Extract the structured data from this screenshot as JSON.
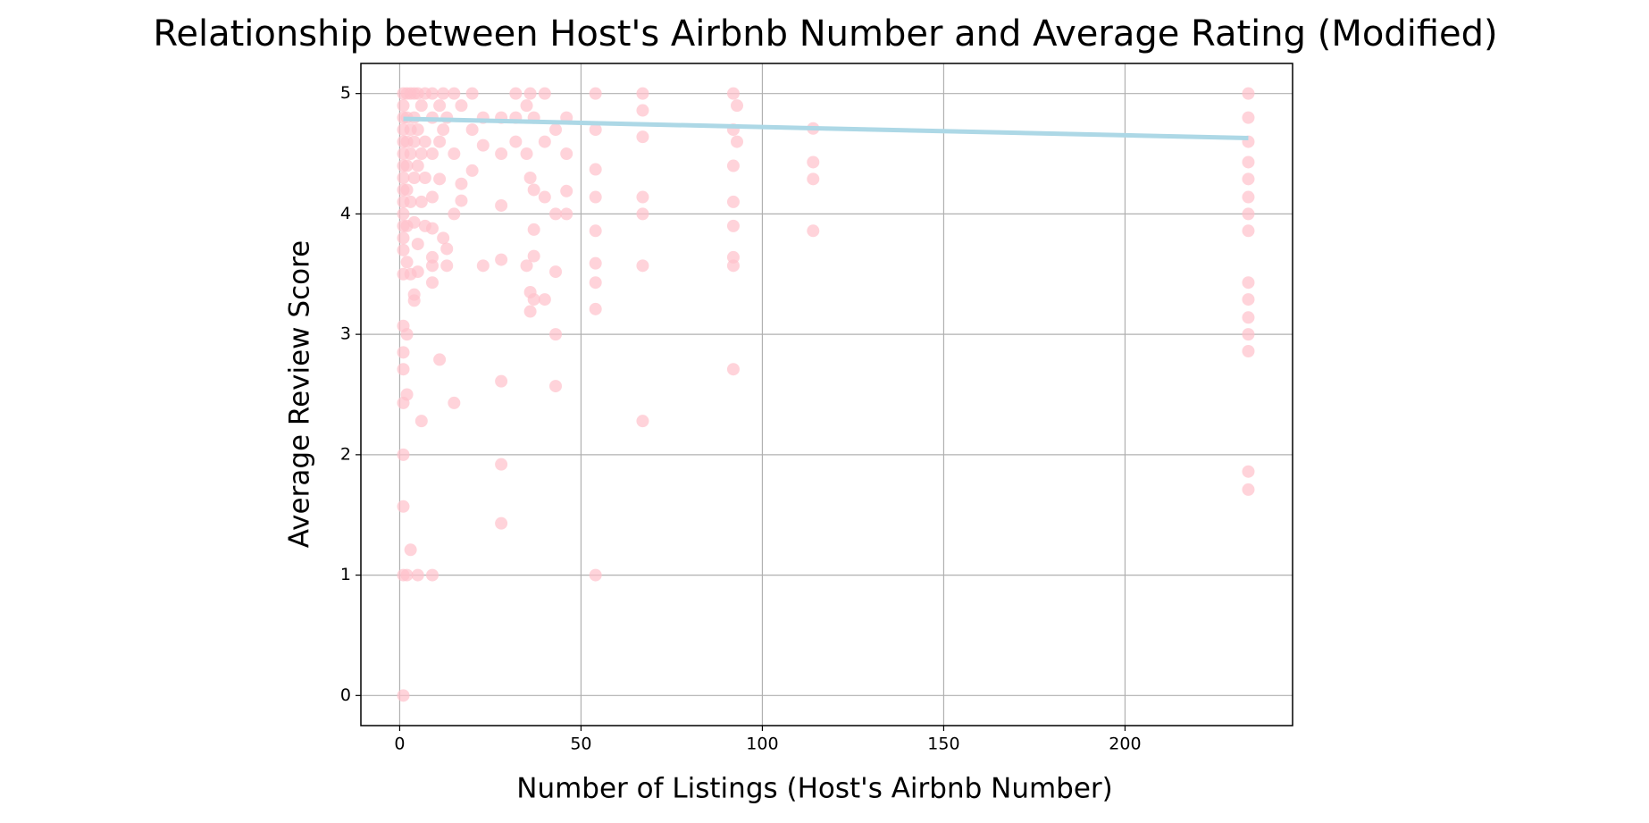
{
  "chart_data": {
    "type": "scatter",
    "title": "Relationship between Host's Airbnb Number and Average Rating (Modified)",
    "x_label": "Number of Listings (Host's Airbnb Number)",
    "y_label": "Average Review Score",
    "xlim": [
      -10.7,
      246.2
    ],
    "ylim": [
      -0.25,
      5.25
    ],
    "xticks": [
      0,
      50,
      100,
      150,
      200
    ],
    "yticks": [
      0,
      1,
      2,
      3,
      4,
      5
    ],
    "grid": true,
    "series": [
      {
        "type": "scatter",
        "color": "#ffc0cb",
        "alpha": 0.7,
        "x": [
          1,
          1,
          1,
          1,
          1,
          1,
          1,
          1,
          1,
          1,
          1,
          1,
          1,
          1,
          1,
          1,
          1,
          1,
          1,
          1,
          1,
          1,
          1,
          2,
          2,
          2,
          2,
          2,
          2,
          2,
          2,
          2,
          2,
          3,
          3,
          3,
          3,
          3,
          3,
          4,
          4,
          4,
          4,
          4,
          4,
          4,
          5,
          5,
          5,
          5,
          5,
          5,
          6,
          6,
          6,
          6,
          7,
          7,
          7,
          7,
          9,
          9,
          9,
          9,
          9,
          9,
          9,
          9,
          9,
          11,
          11,
          11,
          11,
          12,
          12,
          12,
          13,
          13,
          13,
          15,
          15,
          15,
          15,
          17,
          17,
          17,
          20,
          20,
          20,
          23,
          23,
          23,
          28,
          28,
          28,
          28,
          28,
          28,
          28,
          32,
          32,
          32,
          35,
          35,
          35,
          36,
          36,
          36,
          36,
          37,
          37,
          37,
          37,
          37,
          40,
          40,
          40,
          40,
          43,
          43,
          43,
          43,
          43,
          46,
          46,
          46,
          46,
          54,
          54,
          54,
          54,
          54,
          54,
          54,
          54,
          54,
          67,
          67,
          67,
          67,
          67,
          67,
          67,
          92,
          92,
          92,
          92,
          92,
          92,
          92,
          92,
          93,
          93,
          114,
          114,
          114,
          114,
          234,
          234,
          234,
          234,
          234,
          234,
          234,
          234,
          234,
          234,
          234,
          234,
          234,
          234,
          234
        ],
        "values": [
          5,
          4.9,
          4.8,
          4.7,
          4.6,
          4.5,
          4.4,
          4.3,
          4.2,
          4.1,
          4,
          3.9,
          3.8,
          3.7,
          3.5,
          3.07,
          2.85,
          2.71,
          2.43,
          2,
          1.57,
          1,
          0,
          5,
          4.8,
          4.6,
          4.4,
          4.2,
          3.9,
          3.6,
          3,
          2.5,
          1,
          5,
          4.7,
          4.5,
          4.1,
          3.5,
          1.21,
          5,
          4.8,
          4.6,
          4.3,
          3.93,
          3.33,
          3.28,
          5,
          4.7,
          4.4,
          3.75,
          3.52,
          1,
          4.9,
          4.5,
          4.1,
          2.28,
          5,
          4.6,
          4.3,
          3.9,
          5,
          4.8,
          4.5,
          4.14,
          3.88,
          3.64,
          3.57,
          3.43,
          1,
          4.9,
          4.6,
          4.29,
          2.79,
          5,
          4.7,
          3.8,
          4.8,
          3.71,
          3.57,
          5,
          4.5,
          4,
          2.43,
          4.9,
          4.25,
          4.11,
          5,
          4.7,
          4.36,
          4.8,
          4.57,
          3.57,
          4.8,
          4.5,
          4.07,
          3.62,
          2.61,
          1.92,
          1.43,
          5,
          4.8,
          4.6,
          4.9,
          4.5,
          3.57,
          5,
          4.3,
          3.35,
          3.19,
          4.8,
          4.2,
          3.87,
          3.65,
          3.29,
          5,
          4.6,
          4.14,
          3.29,
          4.7,
          4,
          3.52,
          3,
          2.57,
          4.8,
          4.5,
          4.19,
          4,
          5,
          4.7,
          4.37,
          4.14,
          3.86,
          3.59,
          3.43,
          3.21,
          1,
          5,
          4.86,
          4.64,
          4.14,
          4,
          3.57,
          2.28,
          5,
          4.7,
          4.4,
          4.1,
          3.9,
          3.64,
          3.57,
          2.71,
          4.9,
          4.6,
          4.71,
          4.43,
          4.29,
          3.86,
          5,
          4.8,
          4.6,
          4.43,
          4.29,
          4.14,
          4,
          3.86,
          3.43,
          3.29,
          3.14,
          3,
          2.86,
          1.86,
          1.71
        ]
      },
      {
        "type": "line",
        "color": "#add8e6",
        "x": [
          1,
          234
        ],
        "values": [
          4.79,
          4.63
        ]
      }
    ]
  }
}
